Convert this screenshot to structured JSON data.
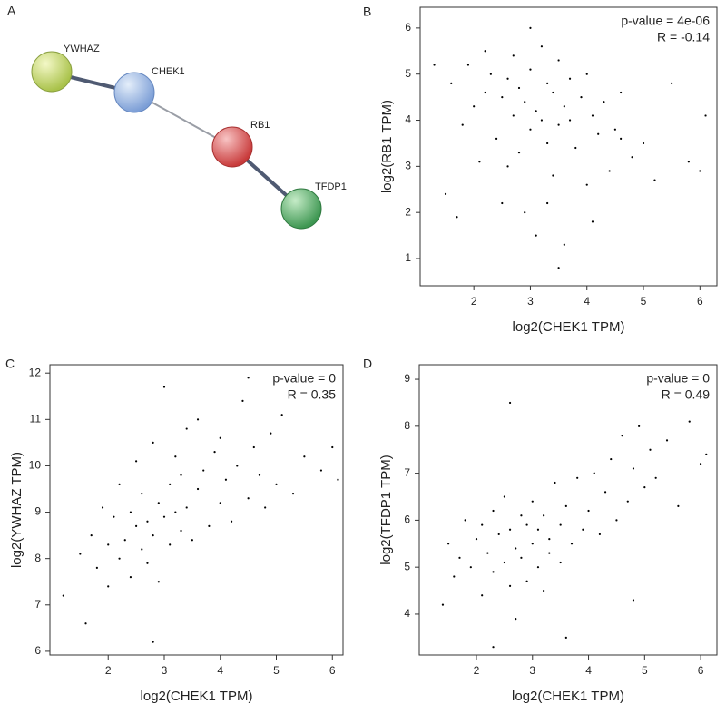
{
  "network": {
    "label": "A",
    "nodes": [
      {
        "label": "YWHAZ"
      },
      {
        "label": "CHEK1"
      },
      {
        "label": "RB1"
      },
      {
        "label": "TFDP1"
      }
    ]
  },
  "chart_data": [
    {
      "type": "scatter",
      "label": "B",
      "xlabel": "log2(CHEK1 TPM)",
      "ylabel": "log2(RB1 TPM)",
      "annotations": [
        "p-value = 4e-06",
        "R = -0.14"
      ],
      "color": "#000000",
      "xlim": [
        1.05,
        6.3
      ],
      "ylim": [
        0.41,
        6.45
      ],
      "xticks": [
        2,
        3,
        4,
        5,
        6
      ],
      "yticks": [
        1,
        2,
        3,
        4,
        5,
        6
      ],
      "x": [
        1.5,
        1.6,
        1.8,
        1.9,
        2.0,
        2.1,
        2.2,
        2.3,
        2.4,
        2.5,
        2.5,
        2.6,
        2.7,
        2.7,
        2.8,
        2.8,
        2.9,
        2.9,
        3.0,
        3.0,
        3.1,
        3.1,
        3.2,
        3.2,
        3.3,
        3.3,
        3.4,
        3.4,
        3.5,
        3.5,
        3.6,
        3.6,
        3.7,
        3.8,
        3.9,
        4.0,
        4.0,
        4.1,
        4.2,
        4.3,
        4.4,
        4.5,
        4.6,
        4.8,
        5.0,
        5.2,
        5.5,
        5.8,
        6.0,
        6.1,
        1.3,
        1.7,
        2.2,
        2.6,
        3.0,
        3.3,
        3.7,
        4.1,
        4.6,
        3.5
      ],
      "y": [
        2.4,
        4.8,
        3.9,
        5.2,
        4.3,
        3.1,
        4.6,
        5.0,
        3.6,
        4.5,
        2.2,
        4.9,
        4.1,
        5.4,
        3.3,
        4.7,
        2.0,
        4.4,
        5.1,
        3.8,
        4.2,
        1.5,
        5.6,
        4.0,
        3.5,
        4.8,
        2.8,
        4.6,
        5.3,
        3.9,
        4.3,
        1.3,
        4.9,
        3.4,
        4.5,
        2.6,
        5.0,
        4.1,
        3.7,
        4.4,
        2.9,
        3.8,
        4.6,
        3.2,
        3.5,
        2.7,
        4.8,
        3.1,
        2.9,
        4.1,
        5.2,
        1.9,
        5.5,
        3.0,
        6.0,
        2.2,
        4.0,
        1.8,
        3.6,
        0.8
      ]
    },
    {
      "type": "scatter",
      "label": "C",
      "xlabel": "log2(CHEK1 TPM)",
      "ylabel": "log2(YWHAZ TPM)",
      "annotations": [
        "p-value = 0",
        "R = 0.35"
      ],
      "color": "#000000",
      "xlim": [
        0.96,
        6.19
      ],
      "ylim": [
        5.92,
        12.18
      ],
      "xticks": [
        2,
        3,
        4,
        5,
        6
      ],
      "yticks": [
        6,
        7,
        8,
        9,
        10,
        11,
        12
      ],
      "x": [
        1.2,
        1.5,
        1.6,
        1.7,
        1.8,
        1.9,
        2.0,
        2.0,
        2.1,
        2.2,
        2.2,
        2.3,
        2.4,
        2.4,
        2.5,
        2.5,
        2.6,
        2.6,
        2.7,
        2.7,
        2.8,
        2.8,
        2.9,
        2.9,
        3.0,
        3.0,
        3.1,
        3.1,
        3.2,
        3.2,
        3.3,
        3.3,
        3.4,
        3.4,
        3.5,
        3.6,
        3.6,
        3.7,
        3.8,
        3.9,
        4.0,
        4.0,
        4.1,
        4.2,
        4.3,
        4.4,
        4.5,
        4.6,
        4.7,
        4.8,
        4.9,
        5.0,
        5.1,
        5.3,
        5.5,
        5.8,
        6.0,
        6.1,
        2.8,
        4.5
      ],
      "y": [
        7.2,
        8.1,
        6.6,
        8.5,
        7.8,
        9.1,
        8.3,
        7.4,
        8.9,
        8.0,
        9.6,
        8.4,
        7.6,
        9.0,
        8.7,
        10.1,
        8.2,
        9.4,
        7.9,
        8.8,
        10.5,
        8.5,
        9.2,
        7.5,
        11.7,
        8.9,
        9.6,
        8.3,
        10.2,
        9.0,
        8.6,
        9.8,
        10.8,
        9.1,
        8.4,
        9.5,
        11.0,
        9.9,
        8.7,
        10.3,
        9.2,
        10.6,
        9.7,
        8.8,
        10.0,
        11.4,
        9.3,
        10.4,
        9.8,
        9.1,
        10.7,
        9.6,
        11.1,
        9.4,
        10.2,
        9.9,
        10.4,
        9.7,
        6.2,
        11.9
      ]
    },
    {
      "type": "scatter",
      "label": "D",
      "xlabel": "log2(CHEK1 TPM)",
      "ylabel": "log2(TFDP1 TPM)",
      "annotations": [
        "p-value = 0",
        "R = 0.49"
      ],
      "color": "#000000",
      "xlim": [
        0.98,
        6.29
      ],
      "ylim": [
        3.13,
        9.31
      ],
      "xticks": [
        2,
        3,
        4,
        5,
        6
      ],
      "yticks": [
        4,
        5,
        6,
        7,
        8,
        9
      ],
      "x": [
        1.4,
        1.5,
        1.6,
        1.7,
        1.8,
        1.9,
        2.0,
        2.1,
        2.1,
        2.2,
        2.3,
        2.3,
        2.4,
        2.5,
        2.5,
        2.6,
        2.6,
        2.7,
        2.7,
        2.8,
        2.8,
        2.9,
        2.9,
        3.0,
        3.0,
        3.1,
        3.1,
        3.2,
        3.2,
        3.3,
        3.3,
        3.4,
        3.5,
        3.5,
        3.6,
        3.7,
        3.8,
        3.9,
        4.0,
        4.1,
        4.2,
        4.3,
        4.4,
        4.5,
        4.6,
        4.7,
        4.8,
        4.9,
        5.0,
        5.1,
        5.2,
        5.4,
        5.6,
        5.8,
        6.0,
        6.1,
        2.6,
        3.6,
        4.8,
        2.3
      ],
      "y": [
        4.2,
        5.5,
        4.8,
        5.2,
        6.0,
        5.0,
        5.6,
        4.4,
        5.9,
        5.3,
        6.2,
        4.9,
        5.7,
        5.1,
        6.5,
        4.6,
        5.8,
        5.4,
        3.9,
        6.1,
        5.2,
        5.9,
        4.7,
        5.5,
        6.4,
        5.0,
        5.8,
        4.5,
        6.1,
        5.6,
        5.3,
        6.8,
        5.1,
        5.9,
        6.3,
        5.5,
        6.9,
        5.8,
        6.2,
        7.0,
        5.7,
        6.6,
        7.3,
        6.0,
        7.8,
        6.4,
        7.1,
        8.0,
        6.7,
        7.5,
        6.9,
        7.7,
        6.3,
        8.1,
        7.2,
        7.4,
        8.5,
        3.5,
        4.3,
        3.3
      ]
    }
  ]
}
